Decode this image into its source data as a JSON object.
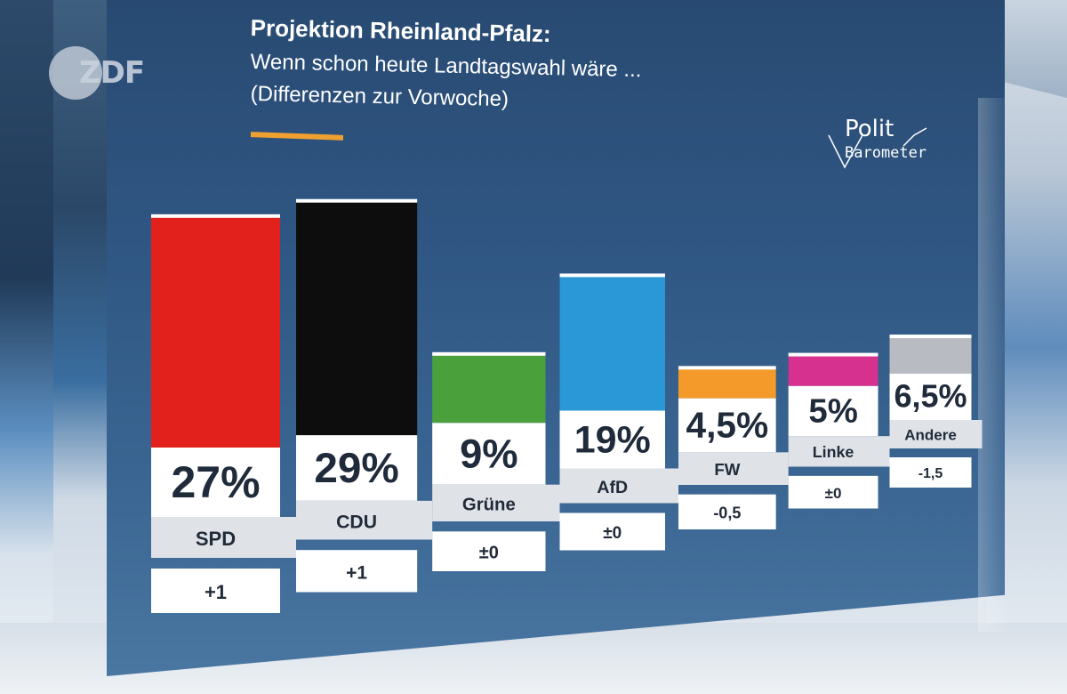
{
  "broadcaster": {
    "logo_text": "ZDF"
  },
  "header": {
    "title": "Projektion Rheinland-Pfalz:",
    "subtitle_line1": "Wenn schon heute Landtagswahl wäre ...",
    "subtitle_line2": "(Differenzen zur Vorwoche)"
  },
  "brand": {
    "word1": "Polit",
    "word2": "Barometer"
  },
  "colors": {
    "accent": "#f0a030",
    "SPD": "#e3211c",
    "CDU": "#0d0d0d",
    "Grüne": "#4aa13c",
    "AfD": "#2a97d6",
    "FW": "#f39a2a",
    "Linke": "#d6318f",
    "Andere": "#b8bcc2"
  },
  "chart_data": {
    "type": "bar",
    "title": "Projektion Rheinland-Pfalz: Wenn schon heute Landtagswahl wäre ...",
    "subtitle": "(Differenzen zur Vorwoche)",
    "unit": "%",
    "categories": [
      "SPD",
      "CDU",
      "Grüne",
      "AfD",
      "FW",
      "Linke",
      "Andere"
    ],
    "values": [
      27,
      29,
      9,
      19,
      4.5,
      5,
      6.5
    ],
    "value_labels": [
      "27%",
      "29%",
      "9%",
      "19%",
      "4,5%",
      "5%",
      "6,5%"
    ],
    "changes": [
      1,
      1,
      0,
      0,
      -0.5,
      0,
      -1.5
    ],
    "change_labels": [
      "+1",
      "+1",
      "±0",
      "±0",
      "-0,5",
      "±0",
      "-1,5"
    ],
    "ylim": [
      0,
      30
    ],
    "grid": false,
    "legend": "none"
  }
}
